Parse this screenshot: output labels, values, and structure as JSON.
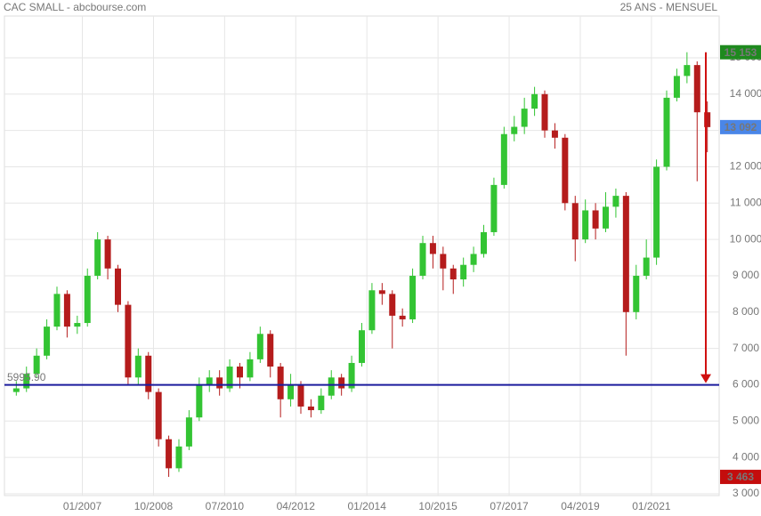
{
  "chart_data": {
    "type": "candlestick",
    "title": "CAC SMALL - abcbourse.com",
    "subtitle": "25 ANS - MENSUEL",
    "x": [
      "2005-04",
      "2005-07",
      "2005-10",
      "2006-01",
      "2006-04",
      "2006-07",
      "2006-10",
      "2007-01",
      "2007-04",
      "2007-07",
      "2007-10",
      "2008-01",
      "2008-04",
      "2008-07",
      "2008-10",
      "2009-01",
      "2009-04",
      "2009-07",
      "2009-10",
      "2010-01",
      "2010-04",
      "2010-07",
      "2010-10",
      "2011-01",
      "2011-04",
      "2011-07",
      "2011-10",
      "2012-01",
      "2012-04",
      "2012-07",
      "2012-10",
      "2013-01",
      "2013-04",
      "2013-07",
      "2013-10",
      "2014-01",
      "2014-04",
      "2014-07",
      "2014-10",
      "2015-01",
      "2015-04",
      "2015-07",
      "2015-10",
      "2016-01",
      "2016-04",
      "2016-07",
      "2016-10",
      "2017-01",
      "2017-04",
      "2017-07",
      "2017-10",
      "2018-01",
      "2018-04",
      "2018-07",
      "2018-10",
      "2019-01",
      "2019-04",
      "2019-07",
      "2019-10",
      "2020-01",
      "2020-04",
      "2020-07",
      "2020-10",
      "2021-01",
      "2021-04",
      "2021-07",
      "2021-10",
      "2022-01",
      "2022-04"
    ],
    "open": [
      5800,
      5900,
      6300,
      6800,
      7600,
      8500,
      7600,
      7700,
      9000,
      10000,
      9200,
      8200,
      6200,
      6800,
      5800,
      4500,
      3700,
      4300,
      5100,
      6000,
      6200,
      5900,
      6500,
      6200,
      6700,
      7400,
      6500,
      5600,
      6000,
      5400,
      5300,
      5700,
      6200,
      5900,
      6600,
      7500,
      8600,
      8500,
      7900,
      7800,
      9000,
      9900,
      9600,
      9200,
      8900,
      9300,
      9600,
      10200,
      11500,
      12900,
      13100,
      13600,
      14000,
      13000,
      12800,
      11000,
      10000,
      10800,
      10300,
      10900,
      11200,
      8000,
      9000,
      9500,
      12000,
      13900,
      14500,
      14800,
      13500
    ],
    "high": [
      6100,
      6500,
      7000,
      7800,
      8700,
      8600,
      7900,
      9200,
      10200,
      10100,
      9300,
      8300,
      7000,
      6900,
      5900,
      4600,
      4500,
      5300,
      6200,
      6400,
      6400,
      6700,
      6600,
      6900,
      7600,
      7500,
      6600,
      6300,
      6100,
      5600,
      5900,
      6400,
      6300,
      6800,
      7700,
      8800,
      8800,
      8600,
      8100,
      9200,
      10100,
      10100,
      9800,
      9300,
      9500,
      9800,
      10400,
      11700,
      13100,
      13400,
      13900,
      14200,
      14100,
      13200,
      12900,
      11200,
      11100,
      11000,
      11300,
      11400,
      11300,
      9300,
      10000,
      12200,
      14100,
      14700,
      15153,
      14900,
      13800
    ],
    "low": [
      5700,
      5800,
      6200,
      6700,
      7500,
      7300,
      7400,
      7600,
      8900,
      8900,
      8000,
      6000,
      6000,
      5600,
      4300,
      3463,
      3600,
      4200,
      5000,
      5800,
      5700,
      5800,
      5900,
      6100,
      6600,
      6200,
      5100,
      5400,
      5200,
      5100,
      5200,
      5600,
      5700,
      5800,
      6500,
      7400,
      8200,
      7000,
      7600,
      7700,
      8900,
      9200,
      8600,
      8500,
      8700,
      9100,
      9500,
      10100,
      11400,
      12700,
      12900,
      13400,
      12800,
      12500,
      10800,
      9400,
      9900,
      10000,
      10200,
      10600,
      6800,
      7800,
      8900,
      9300,
      11900,
      13800,
      14300,
      11600,
      12400
    ],
    "close": [
      5900,
      6300,
      6800,
      7600,
      8500,
      7600,
      7700,
      9000,
      10000,
      9200,
      8200,
      6200,
      6800,
      5800,
      4500,
      3700,
      4300,
      5100,
      6000,
      6200,
      5900,
      6500,
      6200,
      6700,
      7400,
      6500,
      5600,
      6000,
      5400,
      5300,
      5700,
      6200,
      5900,
      6600,
      7500,
      8600,
      8500,
      7900,
      7800,
      9000,
      9900,
      9600,
      9200,
      8900,
      9300,
      9600,
      10200,
      11500,
      12900,
      13100,
      13600,
      14000,
      13000,
      12800,
      11000,
      10000,
      10800,
      10300,
      10900,
      11200,
      8000,
      9000,
      9500,
      12000,
      13900,
      14500,
      14800,
      13500,
      13092
    ],
    "up_color": "#33c433",
    "down_color": "#b51c1c",
    "xlim": [
      "2005-02",
      "2022-09"
    ],
    "xticks": [
      {
        "value": "2007-01",
        "label": "01/2007"
      },
      {
        "value": "2008-10",
        "label": "10/2008"
      },
      {
        "value": "2010-07",
        "label": "07/2010"
      },
      {
        "value": "2012-04",
        "label": "04/2012"
      },
      {
        "value": "2014-01",
        "label": "01/2014"
      },
      {
        "value": "2015-10",
        "label": "10/2015"
      },
      {
        "value": "2017-07",
        "label": "07/2017"
      },
      {
        "value": "2019-04",
        "label": "04/2019"
      },
      {
        "value": "2021-01",
        "label": "01/2021"
      }
    ],
    "ylim": [
      2950,
      16150
    ],
    "yticks": [
      {
        "value": 3000,
        "label": "3 000"
      },
      {
        "value": 4000,
        "label": "4 000"
      },
      {
        "value": 5000,
        "label": "5 000"
      },
      {
        "value": 6000,
        "label": "6 000"
      },
      {
        "value": 7000,
        "label": "7 000"
      },
      {
        "value": 8000,
        "label": "8 000"
      },
      {
        "value": 9000,
        "label": "9 000"
      },
      {
        "value": 10000,
        "label": "10 000"
      },
      {
        "value": 11000,
        "label": "11 000"
      },
      {
        "value": 12000,
        "label": "12 000"
      },
      {
        "value": 13000,
        "label": "13 000"
      },
      {
        "value": 14000,
        "label": "14 000"
      },
      {
        "value": 15000,
        "label": "15 000"
      }
    ],
    "grid": true,
    "hline": {
      "value": 5995.9,
      "label": "5995.90",
      "color": "#1b1b9e"
    },
    "price_tags": [
      {
        "value": 15153,
        "label": "15 153",
        "color": "#1e8a1e"
      },
      {
        "value": 13092,
        "label": "13 092",
        "color": "#4a86e8"
      },
      {
        "value": 3463,
        "label": "3 463",
        "color": "#c40d0d"
      }
    ],
    "arrow_color": "#d01010"
  }
}
